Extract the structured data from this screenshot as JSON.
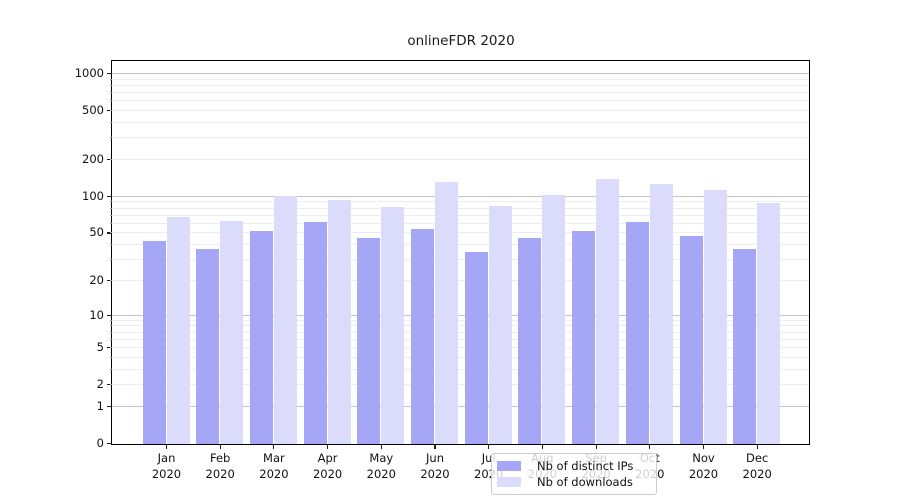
{
  "title": "onlineFDR 2020",
  "chart_data": {
    "type": "bar",
    "title": "onlineFDR 2020",
    "xlabel": "",
    "ylabel": "",
    "yscale": "symlog",
    "ylim": [
      0,
      1280
    ],
    "y_ticks": [
      0,
      1,
      2,
      5,
      10,
      20,
      50,
      100,
      200,
      500,
      1000
    ],
    "grid": "on (major decades darker, minor log subdivisions lighter)",
    "grid_major_values": [
      1,
      10,
      100,
      1000
    ],
    "grid_minor_values": [
      2,
      3,
      4,
      5,
      6,
      7,
      8,
      9,
      20,
      30,
      40,
      50,
      60,
      70,
      80,
      90,
      200,
      300,
      400,
      500,
      600,
      700,
      800,
      900
    ],
    "legend_position": "lower center",
    "categories": [
      {
        "month": "Jan",
        "year": "2020"
      },
      {
        "month": "Feb",
        "year": "2020"
      },
      {
        "month": "Mar",
        "year": "2020"
      },
      {
        "month": "Apr",
        "year": "2020"
      },
      {
        "month": "May",
        "year": "2020"
      },
      {
        "month": "Jun",
        "year": "2020"
      },
      {
        "month": "Jul",
        "year": "2020"
      },
      {
        "month": "Aug",
        "year": "2020"
      },
      {
        "month": "Sep",
        "year": "2020"
      },
      {
        "month": "Oct",
        "year": "2020"
      },
      {
        "month": "Nov",
        "year": "2020"
      },
      {
        "month": "Dec",
        "year": "2020"
      }
    ],
    "series": [
      {
        "name": "Nb of distinct IPs",
        "color": "#a6a6f6",
        "values": [
          43,
          37,
          52,
          62,
          46,
          54,
          35,
          46,
          52,
          62,
          48,
          37
        ]
      },
      {
        "name": "Nb of downloads",
        "color": "#dbdbfb",
        "values": [
          68,
          64,
          102,
          95,
          83,
          133,
          84,
          104,
          140,
          128,
          113,
          90
        ]
      }
    ]
  },
  "colors": {
    "grid_major": "#c4c4c4",
    "grid_minor": "#ededed",
    "spine": "#000000",
    "text": "#111111"
  }
}
